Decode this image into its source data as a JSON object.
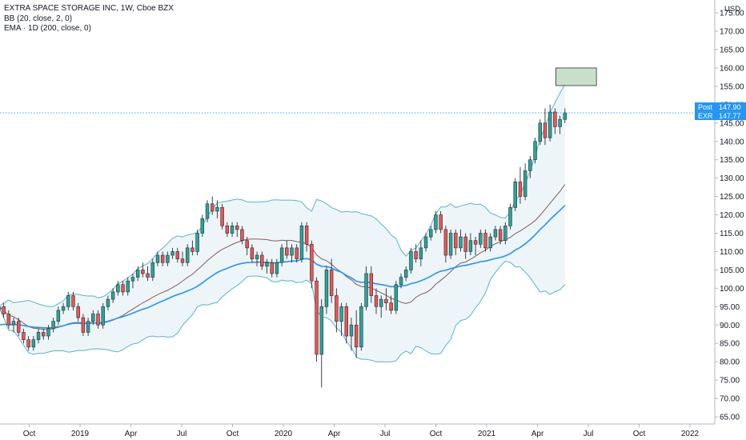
{
  "legend": {
    "title": "EXTRA SPACE STORAGE INC, 1W, Cboe BZX",
    "bb": "BB (20, close, 2, 0)",
    "ema": "EMA · 1D (200, close, 0)"
  },
  "currency": "USD",
  "price_tags": {
    "post_label": "Post",
    "post_value": "147.90",
    "exr_label": "EXR",
    "exr_value": "147.77"
  },
  "colors": {
    "up": "#26a69a",
    "down": "#ef5350",
    "ema": "#2196f3",
    "bb_basis": "#8b5a5a",
    "bb_band": "#5ab4c8",
    "bb_fill": "#e9f3f6",
    "post_tag": "#2196f3",
    "box_fill": "#c8e0c8"
  },
  "chart_data": {
    "type": "candlestick",
    "y_ticks": [
      "65.00",
      "70.00",
      "75.00",
      "80.00",
      "85.00",
      "90.00",
      "95.00",
      "100.00",
      "105.00",
      "110.00",
      "115.00",
      "120.00",
      "125.00",
      "130.00",
      "135.00",
      "140.00",
      "145.00",
      "150.00",
      "155.00",
      "160.00",
      "165.00",
      "170.00",
      "175.00"
    ],
    "y_tick_values": [
      65,
      70,
      75,
      80,
      85,
      90,
      95,
      100,
      105,
      110,
      115,
      120,
      125,
      130,
      135,
      140,
      145,
      150,
      155,
      160,
      165,
      170,
      175
    ],
    "ylim": [
      62,
      180
    ],
    "xlim": [
      2018.6,
      2022.2
    ],
    "x_ticks": [
      {
        "label": "Oct",
        "t": 2018.75
      },
      {
        "label": "2019",
        "t": 2019.0
      },
      {
        "label": "Apr",
        "t": 2019.25
      },
      {
        "label": "Jul",
        "t": 2019.5
      },
      {
        "label": "Oct",
        "t": 2019.75
      },
      {
        "label": "2020",
        "t": 2020.0
      },
      {
        "label": "Apr",
        "t": 2020.25
      },
      {
        "label": "Jul",
        "t": 2020.5
      },
      {
        "label": "Oct",
        "t": 2020.75
      },
      {
        "label": "2021",
        "t": 2021.0
      },
      {
        "label": "Apr",
        "t": 2021.25
      },
      {
        "label": "Jul",
        "t": 2021.5
      },
      {
        "label": "Oct",
        "t": 2021.75
      },
      {
        "label": "2022",
        "t": 2022.0
      }
    ],
    "candles": [
      [
        94,
        96,
        92,
        95
      ],
      [
        95,
        96,
        92,
        93
      ],
      [
        93,
        94,
        89,
        90
      ],
      [
        90,
        92,
        88,
        91
      ],
      [
        91,
        92,
        87,
        88
      ],
      [
        88,
        89,
        85,
        86
      ],
      [
        86,
        87,
        83,
        84
      ],
      [
        84,
        87,
        83,
        86
      ],
      [
        86,
        89,
        85,
        88
      ],
      [
        88,
        89,
        86,
        87
      ],
      [
        87,
        90,
        86,
        89
      ],
      [
        89,
        92,
        88,
        91
      ],
      [
        91,
        95,
        90,
        94
      ],
      [
        94,
        96,
        93,
        95
      ],
      [
        95,
        99,
        94,
        98
      ],
      [
        98,
        99,
        94,
        95
      ],
      [
        95,
        96,
        91,
        92
      ],
      [
        92,
        93,
        87,
        88
      ],
      [
        88,
        92,
        87,
        91
      ],
      [
        91,
        94,
        90,
        93
      ],
      [
        93,
        94,
        89,
        90
      ],
      [
        90,
        96,
        89,
        95
      ],
      [
        95,
        98,
        94,
        97
      ],
      [
        97,
        100,
        96,
        99
      ],
      [
        99,
        102,
        98,
        101
      ],
      [
        101,
        102,
        98,
        99
      ],
      [
        99,
        103,
        98,
        102
      ],
      [
        102,
        104,
        100,
        103
      ],
      [
        103,
        106,
        102,
        105
      ],
      [
        105,
        107,
        103,
        104
      ],
      [
        104,
        106,
        102,
        103
      ],
      [
        103,
        108,
        102,
        107
      ],
      [
        107,
        110,
        106,
        109
      ],
      [
        109,
        110,
        106,
        107
      ],
      [
        107,
        110,
        106,
        109
      ],
      [
        109,
        111,
        108,
        110
      ],
      [
        110,
        111,
        107,
        108
      ],
      [
        108,
        110,
        106,
        107
      ],
      [
        107,
        112,
        106,
        111
      ],
      [
        111,
        113,
        109,
        110
      ],
      [
        110,
        116,
        109,
        115
      ],
      [
        115,
        120,
        114,
        119
      ],
      [
        119,
        124,
        118,
        123
      ],
      [
        123,
        125,
        120,
        121
      ],
      [
        121,
        124,
        119,
        122
      ],
      [
        122,
        123,
        116,
        117
      ],
      [
        117,
        118,
        114,
        115
      ],
      [
        115,
        118,
        114,
        117
      ],
      [
        117,
        118,
        114,
        116
      ],
      [
        116,
        117,
        112,
        113
      ],
      [
        113,
        114,
        109,
        111
      ],
      [
        111,
        112,
        107,
        108
      ],
      [
        108,
        110,
        106,
        109
      ],
      [
        109,
        110,
        105,
        106
      ],
      [
        106,
        108,
        104,
        107
      ],
      [
        107,
        108,
        103,
        104
      ],
      [
        104,
        108,
        103,
        107
      ],
      [
        107,
        112,
        106,
        111
      ],
      [
        111,
        113,
        108,
        109
      ],
      [
        109,
        112,
        107,
        111
      ],
      [
        111,
        112,
        107,
        108
      ],
      [
        108,
        118,
        107,
        117
      ],
      [
        117,
        118,
        110,
        112
      ],
      [
        112,
        113,
        100,
        102
      ],
      [
        102,
        103,
        80,
        82
      ],
      [
        82,
        97,
        73,
        95
      ],
      [
        95,
        106,
        93,
        105
      ],
      [
        105,
        108,
        96,
        98
      ],
      [
        98,
        100,
        88,
        91
      ],
      [
        91,
        96,
        87,
        95
      ],
      [
        95,
        96,
        85,
        87
      ],
      [
        87,
        92,
        83,
        90
      ],
      [
        90,
        94,
        81,
        84
      ],
      [
        84,
        96,
        83,
        95
      ],
      [
        95,
        106,
        94,
        104
      ],
      [
        104,
        106,
        96,
        98
      ],
      [
        98,
        100,
        93,
        95
      ],
      [
        95,
        98,
        92,
        97
      ],
      [
        97,
        100,
        94,
        96
      ],
      [
        96,
        98,
        93,
        94
      ],
      [
        94,
        102,
        93,
        101
      ],
      [
        101,
        104,
        100,
        103
      ],
      [
        103,
        106,
        102,
        105
      ],
      [
        105,
        111,
        104,
        110
      ],
      [
        110,
        112,
        107,
        108
      ],
      [
        108,
        113,
        106,
        111
      ],
      [
        111,
        115,
        110,
        114
      ],
      [
        114,
        117,
        113,
        116
      ],
      [
        116,
        121,
        115,
        120
      ],
      [
        120,
        121,
        115,
        116
      ],
      [
        116,
        117,
        107,
        109
      ],
      [
        109,
        116,
        108,
        115
      ],
      [
        115,
        116,
        109,
        111
      ],
      [
        111,
        116,
        110,
        114
      ],
      [
        114,
        115,
        108,
        110
      ],
      [
        110,
        115,
        109,
        113
      ],
      [
        113,
        114,
        109,
        112
      ],
      [
        112,
        116,
        111,
        115
      ],
      [
        115,
        116,
        110,
        111
      ],
      [
        111,
        115,
        110,
        114
      ],
      [
        114,
        117,
        113,
        116
      ],
      [
        116,
        117,
        112,
        113
      ],
      [
        113,
        118,
        112,
        117
      ],
      [
        117,
        123,
        116,
        122
      ],
      [
        122,
        130,
        121,
        129
      ],
      [
        129,
        133,
        123,
        125
      ],
      [
        125,
        134,
        124,
        132
      ],
      [
        132,
        136,
        130,
        135
      ],
      [
        135,
        141,
        134,
        140
      ],
      [
        140,
        146,
        139,
        145
      ],
      [
        145,
        149,
        139,
        141
      ],
      [
        141,
        150,
        140,
        148
      ],
      [
        148,
        149,
        142,
        144
      ],
      [
        144,
        147,
        142,
        146
      ],
      [
        146,
        149,
        145,
        147.77
      ]
    ],
    "annotations": {
      "box_low": 155.2,
      "box_high": 160.0,
      "box_x1": 2021.34,
      "box_x2": 2021.54
    }
  }
}
